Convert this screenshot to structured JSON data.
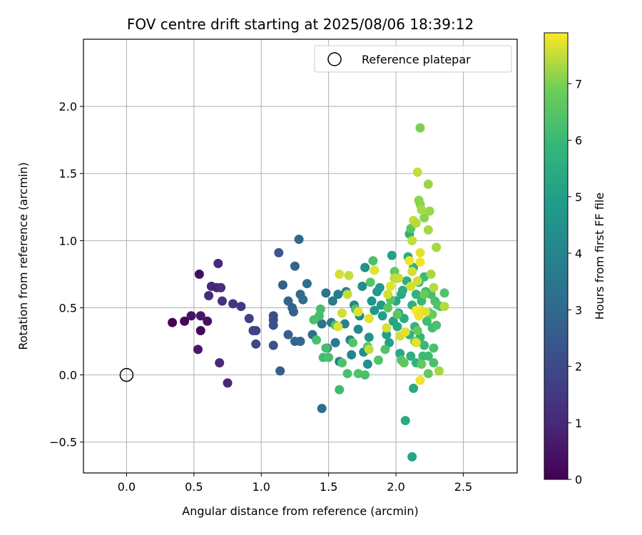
{
  "chart_data": {
    "type": "scatter",
    "title": "FOV centre drift starting at 2025/08/06 18:39:12",
    "xlabel": "Angular distance from reference (arcmin)",
    "ylabel": "Rotation from reference (arcmin)",
    "xlim": [
      -0.32,
      2.9
    ],
    "ylim": [
      -0.73,
      2.5
    ],
    "x_ticks": [
      "0.0",
      "0.5",
      "1.0",
      "1.5",
      "2.0",
      "2.5"
    ],
    "x_tick_values": [
      0.0,
      0.5,
      1.0,
      1.5,
      2.0,
      2.5
    ],
    "y_ticks": [
      "−0.5",
      "0.0",
      "0.5",
      "1.0",
      "1.5",
      "2.0"
    ],
    "y_tick_values": [
      -0.5,
      0.0,
      0.5,
      1.0,
      1.5,
      2.0
    ],
    "grid": true,
    "legend": {
      "position": "upper right",
      "entries": [
        "Reference platepar"
      ]
    },
    "reference_point": {
      "x": 0.0,
      "y": 0.0,
      "marker": "hollow circle"
    },
    "colorbar": {
      "label": "Hours from first FF file",
      "colormap": "viridis",
      "range": [
        0,
        7.9
      ],
      "ticks": [
        "0",
        "1",
        "2",
        "3",
        "4",
        "5",
        "6",
        "7"
      ],
      "tick_values": [
        0,
        1,
        2,
        3,
        4,
        5,
        6,
        7
      ]
    },
    "points": [
      {
        "x": 0.34,
        "y": 0.39,
        "h": 0.05
      },
      {
        "x": 0.43,
        "y": 0.4,
        "h": 0.2
      },
      {
        "x": 0.48,
        "y": 0.44,
        "h": 0.45
      },
      {
        "x": 0.55,
        "y": 0.44,
        "h": 0.55
      },
      {
        "x": 0.6,
        "y": 0.4,
        "h": 0.4
      },
      {
        "x": 0.55,
        "y": 0.33,
        "h": 0.15
      },
      {
        "x": 0.53,
        "y": 0.19,
        "h": 0.6
      },
      {
        "x": 0.54,
        "y": 0.75,
        "h": 0.3
      },
      {
        "x": 0.61,
        "y": 0.59,
        "h": 1.1
      },
      {
        "x": 0.63,
        "y": 0.66,
        "h": 1.0
      },
      {
        "x": 0.67,
        "y": 0.65,
        "h": 0.9
      },
      {
        "x": 0.7,
        "y": 0.65,
        "h": 1.2
      },
      {
        "x": 0.68,
        "y": 0.83,
        "h": 1.0
      },
      {
        "x": 0.69,
        "y": 0.09,
        "h": 1.1
      },
      {
        "x": 0.71,
        "y": 0.55,
        "h": 1.3
      },
      {
        "x": 0.75,
        "y": -0.06,
        "h": 1.0
      },
      {
        "x": 0.79,
        "y": 0.53,
        "h": 1.4
      },
      {
        "x": 0.85,
        "y": 0.51,
        "h": 1.5
      },
      {
        "x": 0.91,
        "y": 0.42,
        "h": 1.7
      },
      {
        "x": 0.94,
        "y": 0.33,
        "h": 1.8
      },
      {
        "x": 0.96,
        "y": 0.33,
        "h": 1.8
      },
      {
        "x": 0.96,
        "y": 0.23,
        "h": 1.9
      },
      {
        "x": 1.09,
        "y": 0.44,
        "h": 2.1
      },
      {
        "x": 1.09,
        "y": 0.41,
        "h": 2.2
      },
      {
        "x": 1.09,
        "y": 0.37,
        "h": 2.2
      },
      {
        "x": 1.09,
        "y": 0.22,
        "h": 2.3
      },
      {
        "x": 1.13,
        "y": 0.91,
        "h": 2.5
      },
      {
        "x": 1.14,
        "y": 0.03,
        "h": 2.6
      },
      {
        "x": 1.16,
        "y": 0.67,
        "h": 2.6
      },
      {
        "x": 1.2,
        "y": 0.55,
        "h": 2.8
      },
      {
        "x": 1.2,
        "y": 0.3,
        "h": 2.7
      },
      {
        "x": 1.23,
        "y": 0.5,
        "h": 2.8
      },
      {
        "x": 1.24,
        "y": 0.47,
        "h": 2.8
      },
      {
        "x": 1.25,
        "y": 0.81,
        "h": 2.9
      },
      {
        "x": 1.25,
        "y": 0.25,
        "h": 2.9
      },
      {
        "x": 1.28,
        "y": 1.01,
        "h": 3.0
      },
      {
        "x": 1.29,
        "y": 0.6,
        "h": 3.0
      },
      {
        "x": 1.29,
        "y": 0.25,
        "h": 3.0
      },
      {
        "x": 1.31,
        "y": 0.56,
        "h": 3.1
      },
      {
        "x": 1.34,
        "y": 0.68,
        "h": 3.2
      },
      {
        "x": 1.38,
        "y": 0.3,
        "h": 3.2
      },
      {
        "x": 1.45,
        "y": 0.38,
        "h": 3.4
      },
      {
        "x": 1.45,
        "y": -0.25,
        "h": 3.2
      },
      {
        "x": 1.48,
        "y": 0.61,
        "h": 3.4
      },
      {
        "x": 1.49,
        "y": 0.2,
        "h": 3.5
      },
      {
        "x": 1.52,
        "y": 0.39,
        "h": 3.6
      },
      {
        "x": 1.53,
        "y": 0.55,
        "h": 3.6
      },
      {
        "x": 1.55,
        "y": 0.24,
        "h": 3.7
      },
      {
        "x": 1.57,
        "y": 0.6,
        "h": 3.7
      },
      {
        "x": 1.58,
        "y": 0.1,
        "h": 3.8
      },
      {
        "x": 1.62,
        "y": 0.38,
        "h": 3.9
      },
      {
        "x": 1.63,
        "y": 0.62,
        "h": 3.9
      },
      {
        "x": 1.66,
        "y": 0.26,
        "h": 4.0
      },
      {
        "x": 1.67,
        "y": 0.15,
        "h": 4.1
      },
      {
        "x": 1.69,
        "y": 0.52,
        "h": 4.1
      },
      {
        "x": 1.72,
        "y": 0.34,
        "h": 4.2
      },
      {
        "x": 1.73,
        "y": 0.44,
        "h": 4.3
      },
      {
        "x": 1.75,
        "y": 0.66,
        "h": 4.4
      },
      {
        "x": 1.76,
        "y": 0.17,
        "h": 4.4
      },
      {
        "x": 1.77,
        "y": 0.8,
        "h": 4.5
      },
      {
        "x": 1.79,
        "y": 0.08,
        "h": 4.5
      },
      {
        "x": 1.8,
        "y": 0.28,
        "h": 4.6
      },
      {
        "x": 1.82,
        "y": 0.55,
        "h": 4.6
      },
      {
        "x": 1.84,
        "y": 0.48,
        "h": 4.7
      },
      {
        "x": 1.86,
        "y": 0.62,
        "h": 4.8
      },
      {
        "x": 1.88,
        "y": 0.65,
        "h": 4.8
      },
      {
        "x": 1.89,
        "y": 0.52,
        "h": 4.9
      },
      {
        "x": 1.9,
        "y": 0.44,
        "h": 5.0
      },
      {
        "x": 1.93,
        "y": 0.3,
        "h": 5.0
      },
      {
        "x": 1.95,
        "y": 0.24,
        "h": 5.1
      },
      {
        "x": 1.97,
        "y": 0.89,
        "h": 5.1
      },
      {
        "x": 1.98,
        "y": 0.4,
        "h": 5.2
      },
      {
        "x": 1.99,
        "y": 0.72,
        "h": 5.2
      },
      {
        "x": 2.0,
        "y": 0.55,
        "h": 5.3
      },
      {
        "x": 2.01,
        "y": 0.36,
        "h": 5.3
      },
      {
        "x": 2.02,
        "y": 0.46,
        "h": 5.3
      },
      {
        "x": 2.03,
        "y": 0.16,
        "h": 5.4
      },
      {
        "x": 2.04,
        "y": 0.6,
        "h": 5.4
      },
      {
        "x": 2.05,
        "y": 0.63,
        "h": 5.5
      },
      {
        "x": 2.06,
        "y": 0.42,
        "h": 5.5
      },
      {
        "x": 2.07,
        "y": -0.34,
        "h": 5.4
      },
      {
        "x": 2.08,
        "y": 0.7,
        "h": 5.5
      },
      {
        "x": 2.09,
        "y": 0.88,
        "h": 5.6
      },
      {
        "x": 2.1,
        "y": 0.3,
        "h": 5.6
      },
      {
        "x": 2.1,
        "y": 1.05,
        "h": 5.6
      },
      {
        "x": 2.11,
        "y": 0.14,
        "h": 5.6
      },
      {
        "x": 2.12,
        "y": -0.61,
        "h": 5.2
      },
      {
        "x": 2.12,
        "y": 0.52,
        "h": 5.7
      },
      {
        "x": 2.13,
        "y": 0.8,
        "h": 5.7
      },
      {
        "x": 2.13,
        "y": -0.1,
        "h": 5.3
      },
      {
        "x": 2.14,
        "y": 0.36,
        "h": 5.8
      },
      {
        "x": 2.15,
        "y": 0.6,
        "h": 5.8
      },
      {
        "x": 2.15,
        "y": 0.09,
        "h": 5.8
      },
      {
        "x": 2.17,
        "y": 0.45,
        "h": 5.9
      },
      {
        "x": 2.17,
        "y": 0.69,
        "h": 5.9
      },
      {
        "x": 2.18,
        "y": 0.28,
        "h": 5.9
      },
      {
        "x": 2.19,
        "y": 0.55,
        "h": 6.0
      },
      {
        "x": 2.2,
        "y": 0.14,
        "h": 6.0
      },
      {
        "x": 2.21,
        "y": 0.73,
        "h": 6.0
      },
      {
        "x": 2.21,
        "y": 0.22,
        "h": 6.0
      },
      {
        "x": 2.22,
        "y": 0.62,
        "h": 6.1
      },
      {
        "x": 2.23,
        "y": 0.4,
        "h": 6.1
      },
      {
        "x": 2.24,
        "y": 0.14,
        "h": 6.1
      },
      {
        "x": 2.25,
        "y": 0.46,
        "h": 6.2
      },
      {
        "x": 2.26,
        "y": 0.6,
        "h": 6.2
      },
      {
        "x": 2.27,
        "y": 0.35,
        "h": 6.2
      },
      {
        "x": 2.28,
        "y": 0.09,
        "h": 6.3
      },
      {
        "x": 2.28,
        "y": 0.2,
        "h": 6.3
      },
      {
        "x": 2.29,
        "y": 0.55,
        "h": 6.3
      },
      {
        "x": 2.3,
        "y": 0.37,
        "h": 6.3
      },
      {
        "x": 2.31,
        "y": 0.52,
        "h": 6.4
      },
      {
        "x": 2.33,
        "y": 0.51,
        "h": 6.4
      },
      {
        "x": 2.36,
        "y": 0.61,
        "h": 6.4
      },
      {
        "x": 1.39,
        "y": 0.41,
        "h": 6.3
      },
      {
        "x": 1.41,
        "y": 0.26,
        "h": 6.3
      },
      {
        "x": 1.43,
        "y": 0.44,
        "h": 6.2
      },
      {
        "x": 1.44,
        "y": 0.49,
        "h": 6.2
      },
      {
        "x": 1.46,
        "y": 0.13,
        "h": 6.1
      },
      {
        "x": 1.48,
        "y": 0.2,
        "h": 6.2
      },
      {
        "x": 1.5,
        "y": 0.13,
        "h": 6.3
      },
      {
        "x": 1.55,
        "y": 0.37,
        "h": 6.4
      },
      {
        "x": 1.58,
        "y": -0.11,
        "h": 6.1
      },
      {
        "x": 1.6,
        "y": 0.09,
        "h": 6.4
      },
      {
        "x": 1.64,
        "y": 0.01,
        "h": 6.3
      },
      {
        "x": 1.68,
        "y": 0.24,
        "h": 6.5
      },
      {
        "x": 1.7,
        "y": 0.49,
        "h": 6.5
      },
      {
        "x": 1.72,
        "y": 0.01,
        "h": 6.4
      },
      {
        "x": 1.77,
        "y": 0.0,
        "h": 6.3
      },
      {
        "x": 1.79,
        "y": 0.21,
        "h": 6.6
      },
      {
        "x": 1.81,
        "y": 0.69,
        "h": 6.5
      },
      {
        "x": 1.83,
        "y": 0.85,
        "h": 6.3
      },
      {
        "x": 1.87,
        "y": 0.11,
        "h": 6.4
      },
      {
        "x": 1.92,
        "y": 0.19,
        "h": 6.4
      },
      {
        "x": 1.94,
        "y": 0.5,
        "h": 6.6
      },
      {
        "x": 1.96,
        "y": 0.56,
        "h": 6.5
      },
      {
        "x": 1.99,
        "y": 0.77,
        "h": 6.7
      },
      {
        "x": 2.01,
        "y": 0.45,
        "h": 6.6
      },
      {
        "x": 2.04,
        "y": 0.11,
        "h": 6.5
      },
      {
        "x": 2.06,
        "y": 0.09,
        "h": 6.6
      },
      {
        "x": 2.11,
        "y": 1.09,
        "h": 6.6
      },
      {
        "x": 2.14,
        "y": 0.25,
        "h": 6.7
      },
      {
        "x": 2.16,
        "y": 0.33,
        "h": 6.7
      },
      {
        "x": 2.19,
        "y": 0.08,
        "h": 6.7
      },
      {
        "x": 2.21,
        "y": 0.6,
        "h": 6.8
      },
      {
        "x": 2.24,
        "y": 0.01,
        "h": 6.7
      },
      {
        "x": 2.27,
        "y": 0.45,
        "h": 6.8
      },
      {
        "x": 2.18,
        "y": 1.84,
        "h": 7.0
      },
      {
        "x": 2.17,
        "y": 1.3,
        "h": 7.1
      },
      {
        "x": 2.18,
        "y": 1.27,
        "h": 7.1
      },
      {
        "x": 2.21,
        "y": 1.17,
        "h": 7.1
      },
      {
        "x": 2.24,
        "y": 1.42,
        "h": 7.2
      },
      {
        "x": 2.25,
        "y": 1.22,
        "h": 7.2
      },
      {
        "x": 2.24,
        "y": 1.08,
        "h": 7.3
      },
      {
        "x": 2.3,
        "y": 0.95,
        "h": 7.3
      },
      {
        "x": 2.26,
        "y": 0.75,
        "h": 7.3
      },
      {
        "x": 2.28,
        "y": 0.65,
        "h": 7.4
      },
      {
        "x": 2.32,
        "y": 0.03,
        "h": 7.3
      },
      {
        "x": 2.36,
        "y": 0.51,
        "h": 7.4
      },
      {
        "x": 2.16,
        "y": 1.51,
        "h": 7.5
      },
      {
        "x": 2.13,
        "y": 1.15,
        "h": 7.5
      },
      {
        "x": 2.15,
        "y": 1.13,
        "h": 7.4
      },
      {
        "x": 2.12,
        "y": 1.0,
        "h": 7.5
      },
      {
        "x": 2.18,
        "y": 0.91,
        "h": 7.7
      },
      {
        "x": 2.11,
        "y": 0.66,
        "h": 7.6
      },
      {
        "x": 1.58,
        "y": 0.75,
        "h": 7.6
      },
      {
        "x": 1.65,
        "y": 0.74,
        "h": 7.5
      },
      {
        "x": 1.84,
        "y": 0.78,
        "h": 7.7
      },
      {
        "x": 1.93,
        "y": 0.35,
        "h": 7.6
      },
      {
        "x": 1.8,
        "y": 0.42,
        "h": 7.7
      },
      {
        "x": 1.6,
        "y": 0.46,
        "h": 7.6
      },
      {
        "x": 1.72,
        "y": 0.47,
        "h": 7.7
      },
      {
        "x": 1.64,
        "y": 0.6,
        "h": 7.5
      },
      {
        "x": 1.94,
        "y": 0.6,
        "h": 7.6
      },
      {
        "x": 1.96,
        "y": 0.66,
        "h": 7.7
      },
      {
        "x": 1.99,
        "y": 0.72,
        "h": 7.5
      },
      {
        "x": 2.03,
        "y": 0.29,
        "h": 7.6
      },
      {
        "x": 2.07,
        "y": 0.32,
        "h": 7.7
      },
      {
        "x": 2.1,
        "y": 0.85,
        "h": 7.8
      },
      {
        "x": 2.15,
        "y": 0.48,
        "h": 7.9
      },
      {
        "x": 2.17,
        "y": 0.44,
        "h": 7.8
      },
      {
        "x": 2.19,
        "y": 0.48,
        "h": 7.8
      },
      {
        "x": 2.16,
        "y": 0.7,
        "h": 7.6
      },
      {
        "x": 2.22,
        "y": 0.47,
        "h": 7.7
      },
      {
        "x": 2.18,
        "y": 0.84,
        "h": 7.8
      },
      {
        "x": 2.12,
        "y": 0.77,
        "h": 7.6
      },
      {
        "x": 2.15,
        "y": 0.24,
        "h": 7.7
      },
      {
        "x": 2.18,
        "y": -0.04,
        "h": 7.8
      },
      {
        "x": 1.8,
        "y": 0.19,
        "h": 7.5
      },
      {
        "x": 1.57,
        "y": 0.36,
        "h": 7.7
      },
      {
        "x": 2.02,
        "y": 0.72,
        "h": 7.5
      },
      {
        "x": 2.19,
        "y": 1.23,
        "h": 7.3
      }
    ]
  }
}
